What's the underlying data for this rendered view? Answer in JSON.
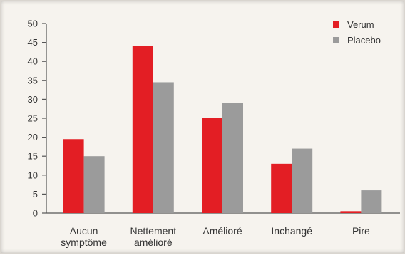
{
  "chart_data": {
    "type": "bar",
    "title": "",
    "xlabel": "",
    "ylabel": "",
    "ylim": [
      0,
      50
    ],
    "yticks": [
      0,
      5,
      10,
      15,
      20,
      25,
      30,
      35,
      40,
      45,
      50
    ],
    "categories": [
      [
        "Aucun",
        "symptôme"
      ],
      [
        "Nettement",
        "amélioré"
      ],
      [
        "Amélioré"
      ],
      [
        "Inchangé"
      ],
      [
        "Pire"
      ]
    ],
    "series": [
      {
        "name": "Verum",
        "color": "#e31e24",
        "values": [
          19.5,
          44,
          25,
          13,
          0.5
        ]
      },
      {
        "name": "Placebo",
        "color": "#9b9b9b",
        "values": [
          15,
          34.5,
          29,
          17,
          6
        ]
      }
    ],
    "grid": false,
    "legend": "top-right"
  }
}
